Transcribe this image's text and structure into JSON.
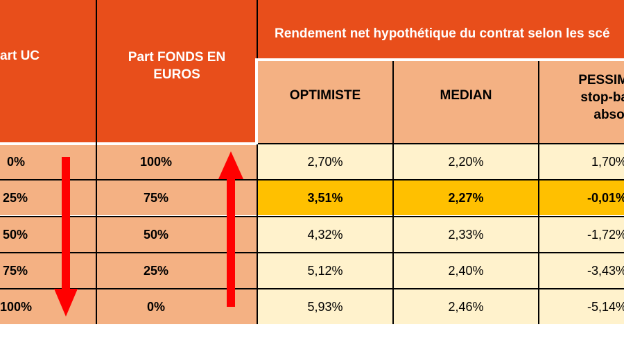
{
  "header": {
    "part_uc": "art UC",
    "part_fonds": "Part FONDS EN EUROS",
    "rendement": "Rendement net hypothétique du contrat selon les scé",
    "optimiste": "OPTIMISTE",
    "median": "MEDIAN",
    "pessimiste": "PESSIM\nstop-ba\nabsol"
  },
  "rows": [
    {
      "uc": "0%",
      "fonds": "100%",
      "optimiste": "2,70%",
      "median": "2,20%",
      "pessimiste": "1,70%"
    },
    {
      "uc": "25%",
      "fonds": "75%",
      "optimiste": "3,51%",
      "median": "2,27%",
      "pessimiste": "-0,01%"
    },
    {
      "uc": "50%",
      "fonds": "50%",
      "optimiste": "4,32%",
      "median": "2,33%",
      "pessimiste": "-1,72%"
    },
    {
      "uc": "75%",
      "fonds": "25%",
      "optimiste": "5,12%",
      "median": "2,40%",
      "pessimiste": "-3,43%"
    },
    {
      "uc": "100%",
      "fonds": "0%",
      "optimiste": "5,93%",
      "median": "2,46%",
      "pessimiste": "-5,14%"
    }
  ],
  "highlighted_row": 1,
  "colors": {
    "header": "#e84e1b",
    "salmon": "#f4b183",
    "cream": "#fff2cc",
    "highlight": "#ffc000",
    "arrow": "#ff0000"
  }
}
